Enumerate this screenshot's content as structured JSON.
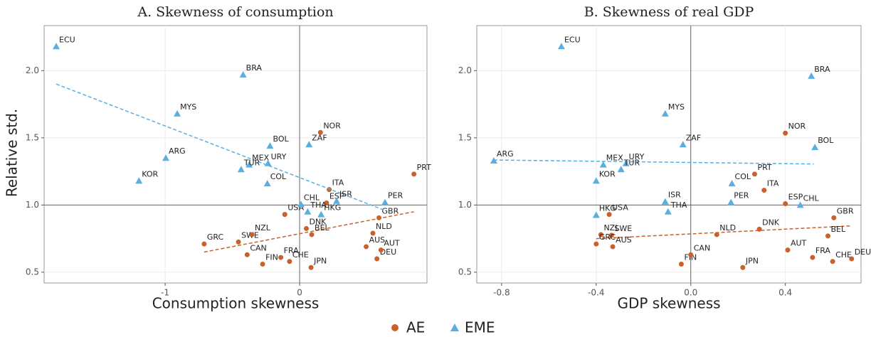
{
  "chart_data": [
    {
      "type": "scatter",
      "title": "A. Skewness of consumption",
      "xlabel": "Consumption skewness",
      "ylabel": "Relative std.",
      "xlim": [
        -1.9,
        0.947
      ],
      "ylim": [
        0.42,
        2.335
      ],
      "xticks": [
        -1,
        0
      ],
      "yticks": [
        {
          "value": 2.0,
          "label": "2.0"
        },
        1.5,
        {
          "value": 1.0,
          "label": "1.0"
        },
        0.5
      ],
      "grid": true,
      "refline": {
        "x": 0,
        "y": 1
      },
      "series": [
        {
          "name": "AE",
          "color": "#c8622a",
          "marker": "circle",
          "labels": [
            "GRC",
            "SWE",
            "NZL",
            "CAN",
            "FIN",
            "FRA",
            "CHE",
            "JPN",
            "USA",
            "DNK",
            "BEL",
            "ESP",
            "ITA",
            "NOR",
            "GBR",
            "NLD",
            "AUS",
            "DEU",
            "AUT",
            "PRT"
          ],
          "x": [
            -0.71,
            -0.455,
            -0.355,
            -0.39,
            -0.275,
            -0.14,
            -0.075,
            0.085,
            -0.11,
            0.05,
            0.09,
            0.2,
            0.22,
            0.155,
            0.59,
            0.545,
            0.495,
            0.575,
            0.605,
            0.85
          ],
          "y": [
            0.71,
            0.725,
            0.78,
            0.63,
            0.56,
            0.61,
            0.58,
            0.535,
            0.93,
            0.825,
            0.78,
            1.015,
            1.115,
            1.54,
            0.905,
            0.79,
            0.69,
            0.6,
            0.665,
            1.23
          ],
          "fit": {
            "x": [
              -0.71,
              0.85
            ],
            "y": [
              0.65,
              0.95
            ]
          }
        },
        {
          "name": "EME",
          "color": "#5aafe0",
          "marker": "triangle",
          "labels": [
            "ECU",
            "BRA",
            "MYS",
            "ARG",
            "KOR",
            "BOL",
            "MEX",
            "TUR",
            "URY",
            "COL",
            "ZAF",
            "CHL",
            "THA",
            "HKG",
            "ISR",
            "PER"
          ],
          "x": [
            -1.81,
            -0.42,
            -0.91,
            -0.995,
            -1.195,
            -0.22,
            -0.375,
            -0.435,
            -0.235,
            -0.24,
            0.07,
            0.01,
            0.06,
            0.16,
            0.275,
            0.635
          ],
          "y": [
            2.18,
            1.97,
            1.68,
            1.35,
            1.18,
            1.44,
            1.3,
            1.265,
            1.31,
            1.16,
            1.45,
            1.005,
            0.95,
            0.93,
            1.03,
            1.02
          ],
          "fit": {
            "x": [
              -1.81,
              0.635
            ],
            "y": [
              1.9,
              0.96
            ]
          }
        }
      ]
    },
    {
      "type": "scatter",
      "title": "B. Skewness of real GDP",
      "xlabel": "GDP skewness",
      "xlim": [
        -0.905,
        0.72
      ],
      "ylim": [
        0.42,
        2.335
      ],
      "xticks": [
        -0.8,
        -0.4,
        {
          "value": 0,
          "label": "0.0"
        },
        0.4
      ],
      "yticks": [
        {
          "value": 2.0,
          "label": "2.0"
        },
        1.5,
        {
          "value": 1.0,
          "label": "1.0"
        },
        0.5
      ],
      "grid": true,
      "refline": {
        "x": 0,
        "y": 1
      },
      "series": [
        {
          "color": "#c8622a",
          "marker": "circle",
          "labels": [
            "NOR",
            "PRT",
            "ITA",
            "ESP",
            "GBR",
            "DNK",
            "NLD",
            "BEL",
            "AUT",
            "FRA",
            "CHE",
            "DEU",
            "JPN",
            "FIN",
            "CAN",
            "USA",
            "NZL",
            "SWE",
            "GRC",
            "AUS"
          ],
          "x": [
            0.4,
            0.27,
            0.31,
            0.4,
            0.605,
            0.29,
            0.11,
            0.58,
            0.41,
            0.515,
            0.6,
            0.68,
            0.22,
            -0.04,
            0.0,
            -0.345,
            -0.38,
            -0.335,
            -0.4,
            -0.33
          ],
          "y": [
            1.535,
            1.23,
            1.11,
            1.01,
            0.905,
            0.82,
            0.78,
            0.77,
            0.665,
            0.61,
            0.58,
            0.6,
            0.535,
            0.56,
            0.63,
            0.93,
            0.78,
            0.775,
            0.71,
            0.69
          ],
          "fit": {
            "x": [
              -0.4,
              0.68
            ],
            "y": [
              0.75,
              0.845
            ]
          }
        },
        {
          "color": "#5aafe0",
          "marker": "triangle",
          "labels": [
            "ECU",
            "BRA",
            "MYS",
            "ZAF",
            "BOL",
            "ARG",
            "MEX",
            "URY",
            "TUR",
            "COL",
            "KOR",
            "PER",
            "CHL",
            "ISR",
            "THA",
            "HKG"
          ],
          "x": [
            -0.547,
            0.51,
            -0.108,
            -0.033,
            0.525,
            -0.833,
            -0.37,
            -0.274,
            -0.295,
            0.174,
            -0.4,
            0.17,
            0.463,
            -0.108,
            -0.096,
            -0.4
          ],
          "y": [
            2.18,
            1.96,
            1.68,
            1.45,
            1.43,
            1.33,
            1.3,
            1.31,
            1.265,
            1.16,
            1.18,
            1.02,
            1.0,
            1.025,
            0.95,
            0.925
          ],
          "fit": {
            "x": [
              -0.833,
              0.52
            ],
            "y": [
              1.335,
              1.305
            ]
          }
        }
      ]
    }
  ]
}
